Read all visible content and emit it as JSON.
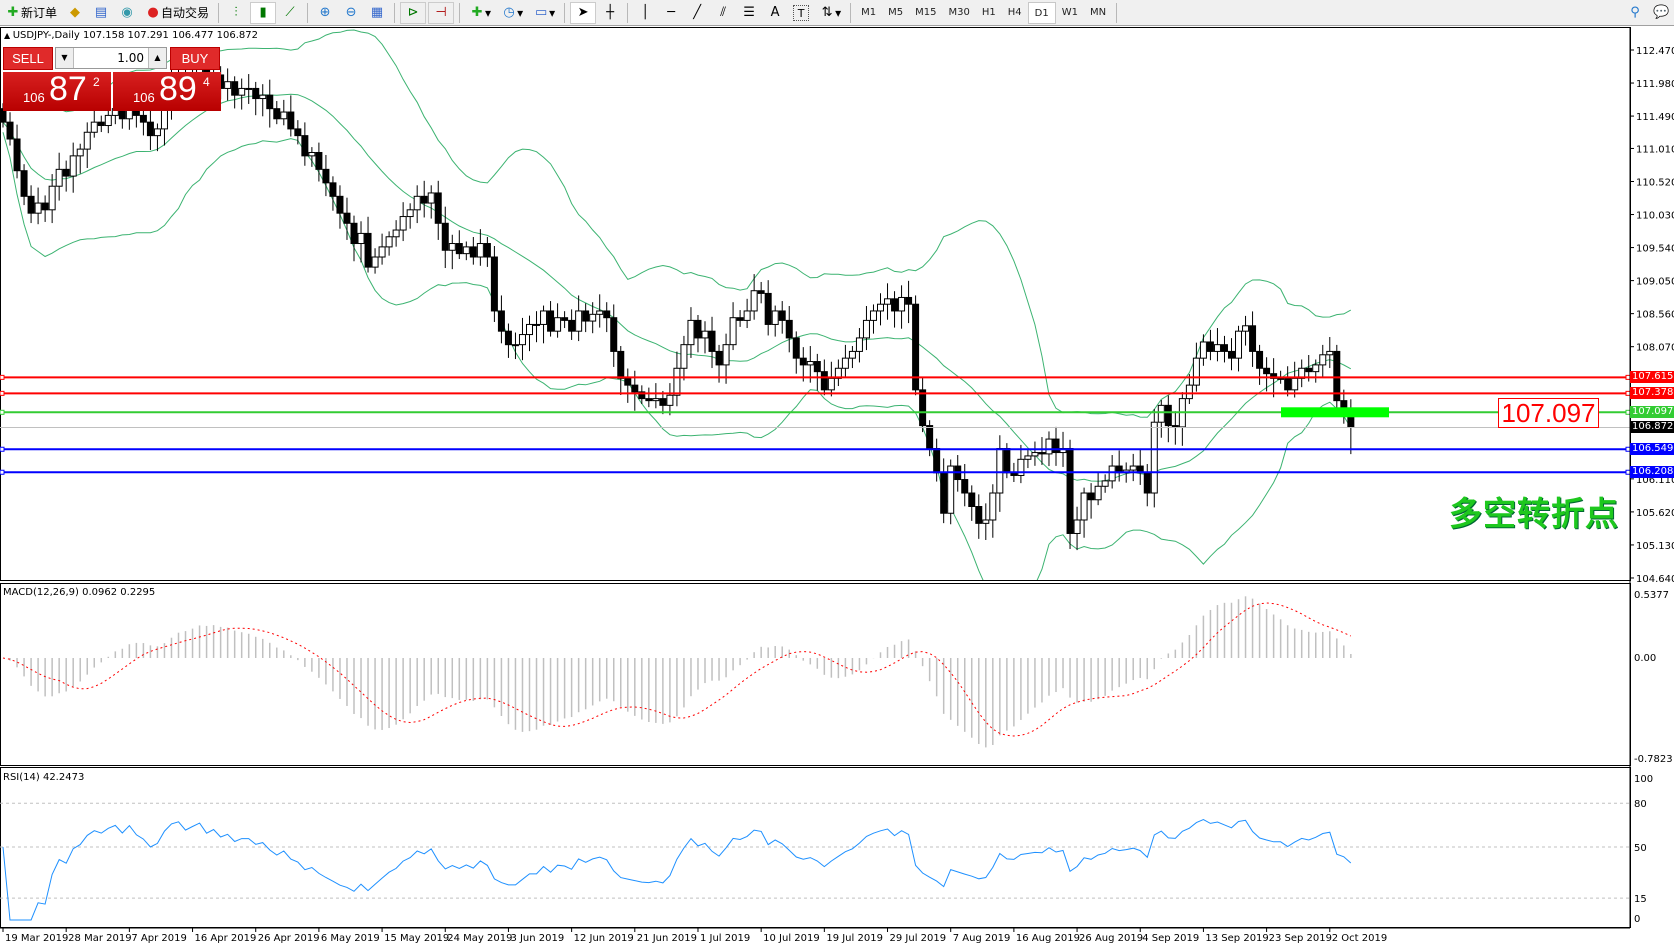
{
  "toolbar": {
    "new_order": "新订单",
    "auto_trading": "自动交易",
    "icons": [
      "new-order-icon",
      "market-watch-icon",
      "navigator-icon",
      "signals-icon",
      "auto-trading-icon",
      "bar-chart-icon",
      "candlestick-icon",
      "line-chart-icon",
      "zoom-in-icon",
      "zoom-out-icon",
      "tile-windows-icon",
      "autoscroll-icon",
      "chart-shift-icon",
      "indicators-icon",
      "periods-icon",
      "templates-icon",
      "cursor-icon",
      "crosshair-icon",
      "vertical-line-icon",
      "horizontal-line-icon",
      "trendline-icon",
      "equidistant-channel-icon",
      "fibonacci-icon",
      "text-icon",
      "text-label-icon",
      "arrows-icon",
      "search-icon",
      "chat-icon"
    ],
    "text_tool": "A",
    "label_tool": "T",
    "timeframes": [
      "M1",
      "M5",
      "M15",
      "M30",
      "H1",
      "H4",
      "D1",
      "W1",
      "MN"
    ],
    "active_timeframe": "D1"
  },
  "chart": {
    "header": "USDJPY-,Daily  107.158 107.291 106.477 106.872",
    "symbol": "USDJPY-",
    "period": "Daily",
    "last_bar": {
      "open": 107.158,
      "high": 107.291,
      "low": 106.477,
      "close": 106.872
    },
    "price_axis": [
      "112.470",
      "111.980",
      "111.490",
      "111.010",
      "110.520",
      "110.030",
      "109.540",
      "109.050",
      "108.560",
      "108.070",
      "106.110",
      "105.620",
      "105.130",
      "104.640"
    ],
    "price_range": [
      104.64,
      112.47
    ],
    "date_labels": [
      "19 Mar 2019",
      "28 Mar 2019",
      "7 Apr 2019",
      "16 Apr 2019",
      "26 Apr 2019",
      "6 May 2019",
      "15 May 2019",
      "24 May 2019",
      "3 Jun 2019",
      "12 Jun 2019",
      "21 Jun 2019",
      "1 Jul 2019",
      "10 Jul 2019",
      "19 Jul 2019",
      "29 Jul 2019",
      "7 Aug 2019",
      "16 Aug 2019",
      "26 Aug 2019",
      "4 Sep 2019",
      "13 Sep 2019",
      "23 Sep 2019",
      "2 Oct 2019"
    ],
    "closes": [
      111.4,
      111.15,
      110.68,
      110.3,
      110.05,
      110.2,
      110.1,
      110.45,
      110.7,
      110.6,
      110.9,
      111.0,
      111.25,
      111.4,
      111.35,
      111.5,
      111.6,
      111.45,
      111.7,
      111.5,
      111.4,
      111.2,
      111.3,
      111.7,
      112.0,
      112.1,
      111.9,
      112.05,
      112.2,
      111.95,
      112.1,
      111.9,
      112.0,
      111.8,
      111.9,
      111.9,
      111.75,
      111.8,
      111.6,
      111.45,
      111.55,
      111.3,
      111.2,
      110.9,
      110.95,
      110.7,
      110.5,
      110.3,
      110.05,
      109.9,
      109.6,
      109.75,
      109.25,
      109.4,
      109.55,
      109.7,
      109.8,
      110.0,
      110.1,
      110.3,
      110.2,
      110.35,
      109.9,
      109.5,
      109.6,
      109.45,
      109.55,
      109.4,
      109.6,
      109.4,
      108.6,
      108.3,
      108.1,
      108.1,
      108.25,
      108.4,
      108.4,
      108.6,
      108.3,
      108.5,
      108.46,
      108.3,
      108.6,
      108.45,
      108.55,
      108.6,
      108.5,
      108.0,
      107.6,
      107.5,
      107.4,
      107.3,
      107.27,
      107.3,
      107.2,
      107.35,
      107.75,
      108.1,
      108.46,
      108.2,
      108.3,
      108.0,
      107.8,
      108.1,
      108.5,
      108.46,
      108.6,
      108.9,
      108.86,
      108.4,
      108.6,
      108.46,
      108.2,
      107.9,
      107.8,
      107.85,
      107.7,
      107.43,
      107.6,
      107.75,
      107.9,
      108.0,
      108.2,
      108.46,
      108.6,
      108.7,
      108.78,
      108.6,
      108.8,
      108.7,
      107.43,
      106.9,
      106.56,
      106.2,
      105.6,
      106.3,
      106.1,
      105.9,
      105.7,
      105.45,
      105.5,
      105.9,
      106.56,
      106.2,
      106.16,
      106.4,
      106.45,
      106.5,
      106.48,
      106.7,
      106.5,
      106.56,
      105.3,
      105.5,
      105.9,
      105.8,
      106.0,
      106.08,
      106.3,
      106.2,
      106.24,
      106.3,
      106.2,
      105.9,
      106.95,
      107.2,
      106.9,
      106.88,
      107.3,
      107.5,
      107.9,
      108.14,
      108.0,
      108.1,
      108.0,
      107.9,
      108.3,
      108.38,
      108.0,
      107.75,
      107.67,
      107.6,
      107.6,
      107.43,
      107.6,
      107.75,
      107.7,
      107.8,
      107.95,
      108.0,
      107.27,
      107.158,
      106.872
    ],
    "hlines": [
      {
        "price": "107.615",
        "color": "#ff0000"
      },
      {
        "price": "107.378",
        "color": "#ff0000"
      },
      {
        "price": "107.097",
        "color": "#33cc33"
      },
      {
        "price": "106.549",
        "color": "#0000ff"
      },
      {
        "price": "106.208",
        "color": "#0000ff"
      }
    ],
    "current_price": "106.872",
    "annotation_price": "107.097",
    "annotation_text": "多空转折点",
    "bollinger_color": "#3cb371"
  },
  "trade_panel": {
    "sell": "SELL",
    "buy": "BUY",
    "lot": "1.00",
    "bid": {
      "small": "106",
      "big": "87",
      "pip": "2"
    },
    "ask": {
      "small": "106",
      "big": "89",
      "pip": "4"
    }
  },
  "macd": {
    "label": "MACD(12,26,9) 0.0962 0.2295",
    "axis": [
      "0.5377",
      "0.00",
      "-0.7823"
    ],
    "range": [
      -0.7823,
      0.5377
    ]
  },
  "rsi": {
    "label": "RSI(14) 42.2473",
    "axis": [
      "100",
      "80",
      "50",
      "15",
      "0"
    ],
    "levels": [
      80,
      50,
      15
    ]
  }
}
